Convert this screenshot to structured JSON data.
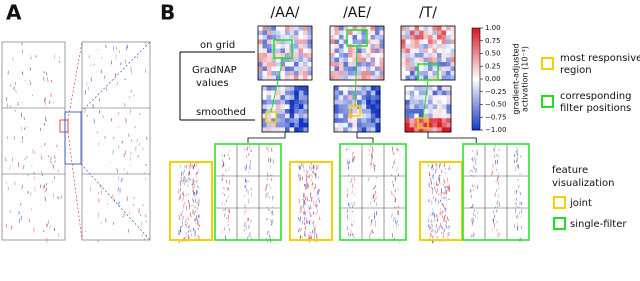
{
  "figure": {
    "panel_a": "A",
    "panel_b": "B",
    "columns": [
      "/AA/",
      "/AE/",
      "/T/"
    ],
    "row_labels": {
      "on_grid": "on grid",
      "gradnap": [
        "GradNAP",
        "values"
      ],
      "smoothed": "smoothed"
    },
    "colorbar": {
      "label": [
        "gradient-adjusted",
        "activation (10⁻³)"
      ],
      "ticks": [
        {
          "value": 1,
          "label": "1.00"
        },
        {
          "value": 0.75,
          "label": "0.75"
        },
        {
          "value": 0.5,
          "label": "0.50"
        },
        {
          "value": 0.25,
          "label": "0.25"
        },
        {
          "value": 0,
          "label": "0.00"
        },
        {
          "value": -0.25,
          "label": "−0.25"
        },
        {
          "value": -0.5,
          "label": "−0.50"
        },
        {
          "value": -0.75,
          "label": "−0.75"
        },
        {
          "value": -1,
          "label": "−1.00"
        }
      ]
    },
    "legend": {
      "responsive": [
        "most responsive",
        "region"
      ],
      "filters": [
        "corresponding",
        "filter positions"
      ],
      "feature_title": [
        "feature",
        "visualization"
      ],
      "joint": "joint",
      "single": "single-filter"
    }
  }
}
